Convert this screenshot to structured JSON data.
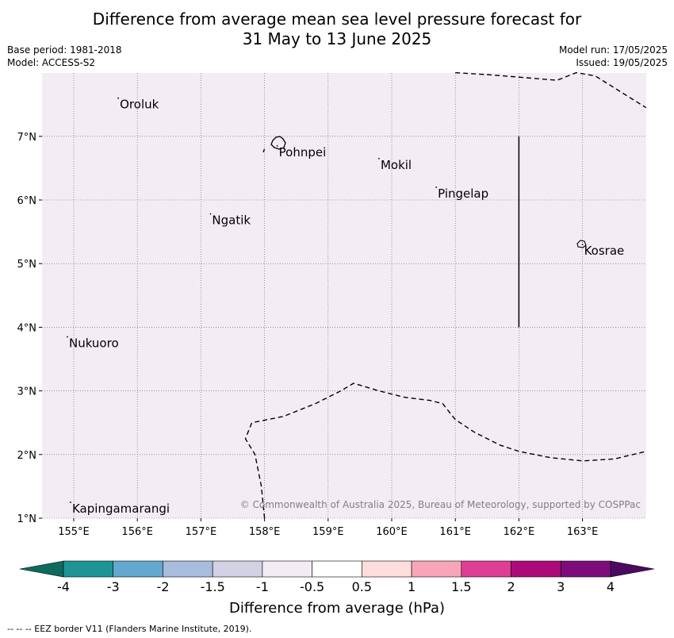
{
  "title_line1": "Difference from average mean sea level pressure forecast for",
  "title_line2": "31 May to 13 June 2025",
  "base_period": "Base period: 1981-2018",
  "model": "Model: ACCESS-S2",
  "model_run": "Model run: 17/05/2025",
  "issued": "Issued: 19/05/2025",
  "copyright": "© Commonwealth of Australia 2025, Bureau of Meteorology, supported by COSPPac",
  "map": {
    "lon_range": [
      154.5,
      164.0
    ],
    "lat_range": [
      1.0,
      8.0
    ],
    "background_color": "#f4ecf5",
    "lon_ticks": [
      "155°E",
      "156°E",
      "157°E",
      "158°E",
      "159°E",
      "160°E",
      "161°E",
      "162°E",
      "163°E"
    ],
    "lat_ticks": [
      "1°N",
      "2°N",
      "3°N",
      "4°N",
      "5°N",
      "6°N",
      "7°N"
    ],
    "places": [
      {
        "name": "Oroluk",
        "lon": 155.7,
        "lat": 7.6
      },
      {
        "name": "Pohnpei",
        "lon": 158.2,
        "lat": 6.85
      },
      {
        "name": "Mokil",
        "lon": 159.8,
        "lat": 6.65
      },
      {
        "name": "Pingelap",
        "lon": 160.7,
        "lat": 6.2
      },
      {
        "name": "Ngatik",
        "lon": 157.15,
        "lat": 5.78
      },
      {
        "name": "Kosrae",
        "lon": 163.0,
        "lat": 5.3
      },
      {
        "name": "Nukuoro",
        "lon": 154.9,
        "lat": 3.85
      },
      {
        "name": "Kapingamarangi",
        "lon": 154.95,
        "lat": 1.25
      }
    ],
    "eez_border_north": [
      [
        161.0,
        8.0
      ],
      [
        161.5,
        7.97
      ],
      [
        162.0,
        7.93
      ],
      [
        162.6,
        7.88
      ],
      [
        162.9,
        8.0
      ],
      [
        163.2,
        7.95
      ],
      [
        163.6,
        7.7
      ],
      [
        164.0,
        7.45
      ]
    ],
    "eez_border_south": [
      [
        158.0,
        1.0
      ],
      [
        157.95,
        1.5
      ],
      [
        157.85,
        2.0
      ],
      [
        157.7,
        2.25
      ],
      [
        157.8,
        2.5
      ],
      [
        158.3,
        2.6
      ],
      [
        158.8,
        2.8
      ],
      [
        159.2,
        3.0
      ],
      [
        159.4,
        3.12
      ],
      [
        159.8,
        3.0
      ],
      [
        160.2,
        2.9
      ],
      [
        160.6,
        2.85
      ],
      [
        160.8,
        2.8
      ],
      [
        161.0,
        2.55
      ],
      [
        161.3,
        2.35
      ],
      [
        161.7,
        2.15
      ],
      [
        162.0,
        2.05
      ],
      [
        162.5,
        1.95
      ],
      [
        163.0,
        1.9
      ],
      [
        163.5,
        1.93
      ],
      [
        164.0,
        2.05
      ]
    ],
    "eez_border_west_stub": [
      [
        157.98,
        6.75
      ],
      [
        158.0,
        6.8
      ]
    ],
    "divider_line": {
      "lon": 162.0,
      "lat_start": 4.0,
      "lat_end": 7.0
    }
  },
  "colorbar": {
    "title": "Difference from average (hPa)",
    "labels": [
      "-4",
      "-3",
      "-2",
      "-1.5",
      "-1",
      "-0.5",
      "0.5",
      "1",
      "1.5",
      "2",
      "3",
      "4"
    ],
    "under_color": "#0c6b5e",
    "over_color": "#4b0a5f",
    "colors": [
      "#1e9594",
      "#63a9cf",
      "#a8bcdd",
      "#d3d1e4",
      "#f4ecf5",
      "#ffffff",
      "#fedddc",
      "#f9a5b9",
      "#de3f94",
      "#ad0a79",
      "#7d0b7b"
    ]
  },
  "footer": "--  --  -- EEZ border V11 (Flanders Marine Institute, 2019)."
}
